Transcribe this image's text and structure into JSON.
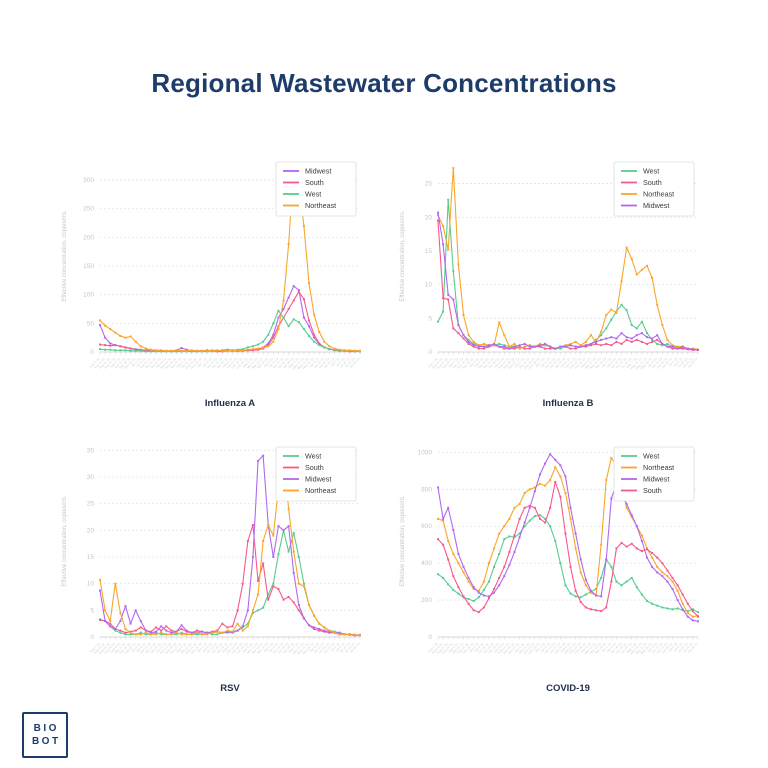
{
  "title": "Regional Wastewater Concentrations",
  "logo": {
    "line1": "BIO",
    "line2": "BOT"
  },
  "brand_color": "#1e3c6a",
  "colors": {
    "West": "#57cd8d",
    "South": "#f6598c",
    "Midwest": "#b168f0",
    "Northeast": "#f9a62b"
  },
  "axis_text_color": "#c2c8cd",
  "grid_color": "#e5e5e5",
  "x_labels": [
    "Aug 7 '22",
    "Aug 14 '22",
    "Aug 21 '22",
    "Aug 28 '22",
    "Sep 4 '22",
    "Sep 11 '22",
    "Sep 18 '22",
    "Sep 25 '22",
    "Oct 2 '22",
    "Oct 9 '22",
    "Oct 16 '22",
    "Oct 23 '22",
    "Oct 30 '22",
    "Nov 6 '22",
    "Nov 13 '22",
    "Nov 20 '22",
    "Nov 27 '22",
    "Dec 4 '22",
    "Dec 11 '22",
    "Dec 18 '22",
    "Dec 25 '22",
    "Jan 1 '23",
    "Jan 8 '23",
    "Jan 15 '23",
    "Jan 22 '23",
    "Jan 29 '23",
    "Feb 5 '23",
    "Feb 12 '23",
    "Feb 19 '23",
    "Feb 26 '23",
    "Mar 5 '23",
    "Mar 12 '23",
    "Mar 19 '23",
    "Mar 26 '23",
    "Apr 2 '23",
    "Apr 9 '23",
    "Apr 16 '23",
    "Apr 23 '23",
    "Apr 30 '23",
    "May 7 '23",
    "May 14 '23",
    "May 21 '23",
    "May 28 '23",
    "Jun 4 '23",
    "Jun 11 '23",
    "Jun 18 '23",
    "Jun 25 '23",
    "Jul 2 '23",
    "Jul 9 '23",
    "Jul 16 '23",
    "Jul 23 '23",
    "Jul 30 '23"
  ],
  "chart_data": [
    {
      "type": "line",
      "title": "Influenza A",
      "ylabel": "Effective concentration, copies/mL",
      "ylim": [
        0,
        335
      ],
      "yticks": [
        0,
        50,
        100,
        150,
        200,
        250,
        300
      ],
      "grid": true,
      "legend_position": "top-right",
      "series": [
        {
          "name": "Midwest",
          "values": [
            47,
            25,
            15,
            12,
            10,
            8,
            6,
            5,
            4,
            3,
            3,
            2,
            2,
            2,
            2,
            3,
            7,
            4,
            2,
            2,
            2,
            3,
            2,
            2,
            3,
            4,
            3,
            2,
            3,
            3,
            4,
            5,
            8,
            15,
            30,
            60,
            75,
            95,
            115,
            108,
            60,
            45,
            25,
            14,
            8,
            5,
            4,
            3,
            2,
            2,
            2,
            2
          ]
        },
        {
          "name": "South",
          "values": [
            13,
            12,
            11,
            12,
            10,
            8,
            6,
            4,
            3,
            2,
            2,
            2,
            2,
            2,
            1,
            1,
            2,
            2,
            1,
            1,
            2,
            2,
            2,
            1,
            1,
            2,
            2,
            2,
            2,
            3,
            3,
            4,
            6,
            12,
            25,
            45,
            60,
            75,
            90,
            105,
            92,
            55,
            30,
            15,
            8,
            5,
            3,
            2,
            2,
            1,
            1,
            1
          ]
        },
        {
          "name": "West",
          "values": [
            5,
            4,
            4,
            3,
            3,
            3,
            2,
            2,
            2,
            1,
            1,
            1,
            1,
            1,
            1,
            1,
            1,
            1,
            1,
            1,
            1,
            1,
            2,
            2,
            2,
            3,
            3,
            4,
            5,
            8,
            10,
            13,
            18,
            30,
            50,
            72,
            60,
            45,
            57,
            52,
            40,
            28,
            18,
            12,
            8,
            5,
            4,
            3,
            2,
            2,
            1,
            1
          ]
        },
        {
          "name": "Northeast",
          "values": [
            55,
            46,
            40,
            34,
            28,
            25,
            27,
            18,
            10,
            6,
            4,
            3,
            3,
            2,
            2,
            3,
            2,
            2,
            3,
            2,
            2,
            2,
            3,
            3,
            2,
            2,
            3,
            3,
            3,
            4,
            5,
            6,
            8,
            10,
            18,
            40,
            90,
            188,
            320,
            295,
            220,
            120,
            65,
            35,
            18,
            10,
            6,
            4,
            3,
            3,
            2,
            2
          ]
        }
      ]
    },
    {
      "type": "line",
      "title": "Influenza B",
      "ylabel": "Effective concentration, copies/mL",
      "ylim": [
        0,
        28.5
      ],
      "yticks": [
        0,
        5,
        10,
        15,
        20,
        25
      ],
      "grid": true,
      "legend_position": "top-right",
      "series": [
        {
          "name": "West",
          "values": [
            4.5,
            6,
            22.6,
            12,
            4,
            2.5,
            1.8,
            1.2,
            1,
            0.8,
            0.8,
            1,
            1.2,
            1,
            0.8,
            0.8,
            0.5,
            0.8,
            1,
            0.8,
            0.8,
            1,
            0.8,
            0.5,
            0.5,
            0.8,
            1,
            0.8,
            0.8,
            1,
            1.2,
            1.8,
            2.5,
            3.5,
            4.8,
            6,
            7,
            6.2,
            4,
            3.5,
            4.5,
            2.8,
            1.8,
            1.2,
            1,
            1.2,
            0.8,
            0.8,
            0.5,
            0.5,
            0.4,
            0.3
          ]
        },
        {
          "name": "South",
          "values": [
            19.5,
            8,
            7.8,
            3.5,
            2.8,
            2,
            1.2,
            0.8,
            0.5,
            0.5,
            0.8,
            1,
            0.8,
            0.5,
            0.5,
            0.5,
            0.8,
            0.5,
            0.5,
            0.8,
            0.8,
            0.5,
            0.5,
            0.5,
            0.8,
            0.8,
            0.5,
            0.5,
            0.8,
            0.8,
            1,
            1.2,
            1,
            1.2,
            1,
            1.5,
            1.2,
            1.8,
            1.5,
            1.8,
            1.5,
            1.2,
            1.5,
            1.8,
            1.2,
            0.8,
            0.5,
            0.5,
            0.5,
            0.4,
            0.3,
            0.3
          ]
        },
        {
          "name": "Northeast",
          "values": [
            20.3,
            18.7,
            15.2,
            27.3,
            13,
            5.5,
            2.5,
            1.5,
            1,
            1.2,
            1,
            1,
            4.4,
            2.5,
            0.8,
            1.2,
            0.5,
            0.8,
            1,
            0.8,
            1.2,
            1,
            0.8,
            0.5,
            0.8,
            1,
            1.2,
            1.5,
            1,
            1.5,
            2.5,
            1.5,
            3,
            5.5,
            6.3,
            5.8,
            10.5,
            15.5,
            13.8,
            11.5,
            12.2,
            12.8,
            11,
            7,
            4,
            1.8,
            1,
            0.8,
            0.8,
            0.5,
            0.5,
            0.4
          ]
        },
        {
          "name": "Midwest",
          "values": [
            20.7,
            16,
            8.5,
            7.8,
            4,
            2.5,
            1.5,
            1,
            0.8,
            0.8,
            1,
            1.2,
            0.8,
            0.8,
            0.5,
            0.8,
            1,
            1.2,
            0.8,
            0.8,
            1,
            1.2,
            0.8,
            0.5,
            0.8,
            0.8,
            1,
            0.8,
            0.8,
            1,
            1.2,
            1.5,
            1.8,
            2,
            2.2,
            2,
            2.8,
            2.2,
            2,
            2.5,
            2.8,
            2.2,
            2,
            2.5,
            1.2,
            0.8,
            0.8,
            0.5,
            0.8,
            0.5,
            0.4,
            0.3
          ]
        }
      ]
    },
    {
      "type": "line",
      "title": "RSV",
      "ylabel": "Effective concentration, copies/mL",
      "ylim": [
        0,
        36
      ],
      "yticks": [
        0,
        5,
        10,
        15,
        20,
        25,
        30,
        35
      ],
      "grid": true,
      "legend_position": "top-right",
      "series": [
        {
          "name": "West",
          "values": [
            3.3,
            3,
            2,
            1.2,
            0.8,
            0.5,
            0.5,
            0.5,
            0.8,
            0.5,
            0.5,
            0.8,
            0.5,
            0.5,
            0.5,
            0.5,
            0.8,
            0.5,
            0.5,
            0.5,
            0.5,
            0.8,
            0.5,
            0.5,
            0.8,
            0.8,
            1,
            1.2,
            1.8,
            2.5,
            4.5,
            5,
            5.5,
            8,
            10,
            15.5,
            20,
            16,
            19.5,
            15,
            10,
            6,
            4,
            2.5,
            1.8,
            1.2,
            1,
            0.8,
            0.5,
            0.5,
            0.4,
            0.3
          ]
        },
        {
          "name": "South",
          "values": [
            3.2,
            3,
            2.5,
            1.5,
            1.2,
            0.8,
            1,
            1.2,
            1.8,
            1.2,
            1,
            1.8,
            1.2,
            2,
            1.2,
            1,
            1.5,
            1,
            0.8,
            1.2,
            1,
            0.8,
            1,
            1.2,
            2.5,
            1.8,
            2,
            5,
            10,
            18,
            21,
            10.5,
            13.8,
            7,
            9.5,
            9,
            7,
            7.5,
            6.5,
            5,
            3.5,
            2.2,
            1.5,
            1.2,
            1,
            0.8,
            0.8,
            0.5,
            0.5,
            0.4,
            0.3,
            0.3
          ]
        },
        {
          "name": "Midwest",
          "values": [
            8.7,
            3,
            2,
            1.5,
            3,
            5.8,
            2.5,
            5,
            3,
            1.2,
            0.8,
            1,
            2,
            1.2,
            0.8,
            1,
            2.2,
            1.2,
            0.8,
            0.8,
            1,
            0.8,
            0.8,
            1,
            0.8,
            1,
            0.8,
            1.2,
            2,
            5,
            15,
            33,
            34,
            21,
            15,
            20.8,
            20,
            20.8,
            12,
            6,
            3.5,
            2.2,
            1.8,
            1.5,
            1.2,
            1,
            0.8,
            0.8,
            0.5,
            0.5,
            0.4,
            0.4
          ]
        },
        {
          "name": "Northeast",
          "values": [
            10.7,
            5,
            3,
            10,
            4.5,
            1.5,
            0.8,
            0.5,
            0.5,
            0.8,
            0.5,
            0.5,
            0.8,
            0.5,
            0.5,
            0.8,
            0.5,
            0.5,
            0.5,
            0.8,
            0.5,
            0.5,
            0.8,
            1,
            0.8,
            1.2,
            1,
            2.5,
            1.2,
            2,
            5,
            8,
            18,
            21,
            19,
            28,
            34,
            24,
            16,
            10,
            9.5,
            6,
            4,
            2.5,
            1.8,
            1.2,
            0.8,
            0.5,
            0.5,
            0.4,
            0.4,
            0.3
          ]
        }
      ]
    },
    {
      "type": "line",
      "title": "COVID-19",
      "ylabel": "Effective concentration, copies/mL",
      "ylim": [
        0,
        1040
      ],
      "yticks": [
        0,
        200,
        400,
        600,
        800,
        1000
      ],
      "grid": true,
      "legend_position": "top-right",
      "series": [
        {
          "name": "West",
          "values": [
            340,
            320,
            285,
            255,
            235,
            215,
            205,
            195,
            215,
            255,
            300,
            380,
            450,
            530,
            545,
            540,
            560,
            600,
            630,
            655,
            660,
            640,
            600,
            520,
            400,
            280,
            235,
            220,
            215,
            230,
            245,
            260,
            320,
            420,
            380,
            300,
            280,
            300,
            320,
            270,
            230,
            195,
            180,
            170,
            160,
            155,
            150,
            155,
            145,
            140,
            150,
            135
          ]
        },
        {
          "name": "Northeast",
          "values": [
            640,
            630,
            520,
            450,
            400,
            350,
            300,
            260,
            250,
            300,
            400,
            480,
            560,
            600,
            640,
            700,
            720,
            780,
            800,
            810,
            830,
            820,
            850,
            920,
            870,
            780,
            640,
            480,
            350,
            280,
            240,
            225,
            500,
            850,
            970,
            930,
            820,
            700,
            650,
            600,
            550,
            480,
            430,
            380,
            350,
            330,
            300,
            250,
            180,
            130,
            110,
            115
          ]
        },
        {
          "name": "Midwest",
          "values": [
            810,
            640,
            700,
            580,
            450,
            380,
            320,
            270,
            240,
            225,
            220,
            240,
            280,
            330,
            390,
            460,
            540,
            620,
            700,
            790,
            880,
            940,
            990,
            960,
            930,
            870,
            700,
            560,
            420,
            310,
            250,
            225,
            220,
            420,
            750,
            830,
            780,
            720,
            660,
            600,
            520,
            430,
            380,
            350,
            330,
            300,
            260,
            200,
            150,
            110,
            90,
            85
          ]
        },
        {
          "name": "South",
          "values": [
            530,
            500,
            420,
            330,
            270,
            220,
            180,
            145,
            135,
            160,
            210,
            260,
            320,
            380,
            460,
            550,
            640,
            700,
            710,
            700,
            640,
            620,
            700,
            840,
            760,
            560,
            380,
            250,
            190,
            160,
            150,
            145,
            140,
            160,
            300,
            480,
            510,
            490,
            505,
            480,
            465,
            475,
            455,
            430,
            400,
            360,
            320,
            280,
            230,
            180,
            140,
            110
          ]
        }
      ]
    }
  ]
}
